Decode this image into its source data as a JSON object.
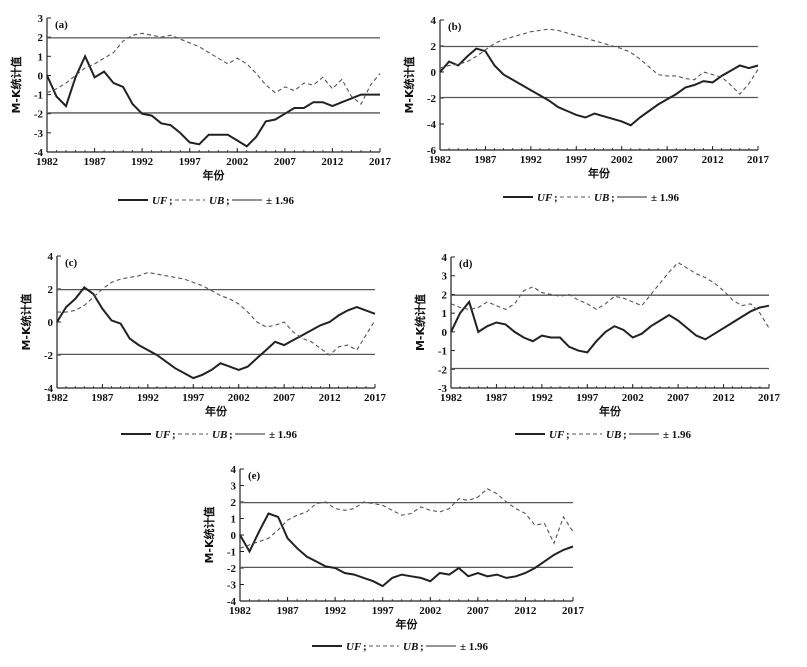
{
  "legend": {
    "uf": "UF",
    "ub": "UB",
    "threshold": "± 1.96",
    "sep": ";"
  },
  "chart_data": [
    {
      "type": "line",
      "panel_label": "(a)",
      "ylabel": "M-K统计值",
      "xlabel": "年份",
      "xlim": [
        1982,
        2017
      ],
      "ylim": [
        -4,
        3
      ],
      "yticks": [
        -4,
        -3,
        -2,
        -1,
        0,
        1,
        2,
        3
      ],
      "xticks": [
        1982,
        1987,
        1992,
        1997,
        2002,
        2007,
        2012,
        2017
      ],
      "threshold": 1.96,
      "x": [
        1982,
        1983,
        1984,
        1985,
        1986,
        1987,
        1988,
        1989,
        1990,
        1991,
        1992,
        1993,
        1994,
        1995,
        1996,
        1997,
        1998,
        1999,
        2000,
        2001,
        2002,
        2003,
        2004,
        2005,
        2006,
        2007,
        2008,
        2009,
        2010,
        2011,
        2012,
        2013,
        2014,
        2015,
        2016,
        2017
      ],
      "series": [
        {
          "name": "UF",
          "style": "solid",
          "values": [
            0,
            -1.1,
            -1.6,
            -0.1,
            1.0,
            -0.1,
            0.2,
            -0.4,
            -0.6,
            -1.5,
            -2.0,
            -2.1,
            -2.5,
            -2.6,
            -3.0,
            -3.5,
            -3.6,
            -3.1,
            -3.1,
            -3.1,
            -3.4,
            -3.7,
            -3.2,
            -2.4,
            -2.3,
            -2.0,
            -1.7,
            -1.7,
            -1.4,
            -1.4,
            -1.6,
            -1.4,
            -1.2,
            -1.0,
            -1.0,
            -1.0
          ]
        },
        {
          "name": "UB",
          "style": "dashed",
          "values": [
            -0.9,
            -0.7,
            -0.4,
            0.0,
            0.4,
            0.6,
            0.9,
            1.2,
            1.8,
            2.1,
            2.2,
            2.1,
            2.0,
            2.1,
            1.9,
            1.7,
            1.5,
            1.2,
            0.9,
            0.6,
            0.9,
            0.6,
            0.1,
            -0.5,
            -0.9,
            -0.6,
            -0.8,
            -0.4,
            -0.5,
            -0.1,
            -0.7,
            -0.2,
            -1.1,
            -1.5,
            -0.5,
            0.1
          ]
        }
      ]
    },
    {
      "type": "line",
      "panel_label": "(b)",
      "ylabel": "M-K统计值",
      "xlabel": "年份",
      "xlim": [
        1982,
        2017
      ],
      "ylim": [
        -6,
        4
      ],
      "yticks": [
        -6,
        -4,
        -2,
        0,
        2,
        4
      ],
      "xticks": [
        1982,
        1987,
        1992,
        1997,
        2002,
        2007,
        2012,
        2017
      ],
      "threshold": 1.96,
      "x": [
        1982,
        1983,
        1984,
        1985,
        1986,
        1987,
        1988,
        1989,
        1990,
        1991,
        1992,
        1993,
        1994,
        1995,
        1996,
        1997,
        1998,
        1999,
        2000,
        2001,
        2002,
        2003,
        2004,
        2005,
        2006,
        2007,
        2008,
        2009,
        2010,
        2011,
        2012,
        2013,
        2014,
        2015,
        2016,
        2017
      ],
      "series": [
        {
          "name": "UF",
          "style": "solid",
          "values": [
            0,
            0.8,
            0.5,
            1.2,
            1.8,
            1.6,
            0.5,
            -0.2,
            -0.6,
            -1.0,
            -1.4,
            -1.8,
            -2.2,
            -2.7,
            -3.0,
            -3.3,
            -3.5,
            -3.2,
            -3.4,
            -3.6,
            -3.8,
            -4.1,
            -3.5,
            -3.0,
            -2.5,
            -2.1,
            -1.7,
            -1.2,
            -1.0,
            -0.7,
            -0.8,
            -0.3,
            0.1,
            0.5,
            0.3,
            0.5
          ]
        },
        {
          "name": "UB",
          "style": "dashed",
          "values": [
            0.3,
            0.5,
            0.6,
            0.8,
            1.2,
            1.7,
            2.2,
            2.5,
            2.7,
            2.9,
            3.1,
            3.2,
            3.3,
            3.2,
            3.0,
            2.8,
            2.6,
            2.4,
            2.2,
            2.0,
            1.8,
            1.5,
            1.0,
            0.4,
            -0.2,
            -0.3,
            -0.3,
            -0.5,
            -0.6,
            0.0,
            -0.2,
            -0.4,
            -1.0,
            -1.7,
            -0.9,
            0.2
          ]
        }
      ]
    },
    {
      "type": "line",
      "panel_label": "(c)",
      "ylabel": "M-K统计值",
      "xlabel": "年份",
      "xlim": [
        1982,
        2017
      ],
      "ylim": [
        -4,
        4
      ],
      "yticks": [
        -4,
        -2,
        0,
        2,
        4
      ],
      "xticks": [
        1982,
        1987,
        1992,
        1997,
        2002,
        2007,
        2012,
        2017
      ],
      "threshold": 1.96,
      "x": [
        1982,
        1983,
        1984,
        1985,
        1986,
        1987,
        1988,
        1989,
        1990,
        1991,
        1992,
        1993,
        1994,
        1995,
        1996,
        1997,
        1998,
        1999,
        2000,
        2001,
        2002,
        2003,
        2004,
        2005,
        2006,
        2007,
        2008,
        2009,
        2010,
        2011,
        2012,
        2013,
        2014,
        2015,
        2016,
        2017
      ],
      "series": [
        {
          "name": "UF",
          "style": "solid",
          "values": [
            0,
            0.9,
            1.4,
            2.1,
            1.7,
            0.8,
            0.1,
            -0.1,
            -1.0,
            -1.4,
            -1.7,
            -2.0,
            -2.4,
            -2.8,
            -3.1,
            -3.4,
            -3.2,
            -2.9,
            -2.5,
            -2.7,
            -2.9,
            -2.7,
            -2.2,
            -1.7,
            -1.2,
            -1.4,
            -1.1,
            -0.8,
            -0.5,
            -0.2,
            0.0,
            0.4,
            0.7,
            0.9,
            0.7,
            0.5
          ]
        },
        {
          "name": "UB",
          "style": "dashed",
          "values": [
            0.6,
            0.6,
            0.7,
            1.0,
            1.5,
            2.0,
            2.4,
            2.6,
            2.7,
            2.8,
            3.0,
            2.9,
            2.8,
            2.7,
            2.6,
            2.4,
            2.2,
            1.9,
            1.6,
            1.4,
            1.1,
            0.6,
            0.0,
            -0.3,
            -0.2,
            0.0,
            -0.6,
            -1.0,
            -1.2,
            -1.6,
            -2.0,
            -1.5,
            -1.4,
            -1.7,
            -0.8,
            0.1
          ]
        }
      ]
    },
    {
      "type": "line",
      "panel_label": "(d)",
      "ylabel": "M-K统计值",
      "xlabel": "年份",
      "xlim": [
        1982,
        2017
      ],
      "ylim": [
        -3,
        4
      ],
      "yticks": [
        -3,
        -2,
        -1,
        0,
        1,
        2,
        3,
        4
      ],
      "xticks": [
        1982,
        1987,
        1992,
        1997,
        2002,
        2007,
        2012,
        2017
      ],
      "threshold": 1.96,
      "x": [
        1982,
        1983,
        1984,
        1985,
        1986,
        1987,
        1988,
        1989,
        1990,
        1991,
        1992,
        1993,
        1994,
        1995,
        1996,
        1997,
        1998,
        1999,
        2000,
        2001,
        2002,
        2003,
        2004,
        2005,
        2006,
        2007,
        2008,
        2009,
        2010,
        2011,
        2012,
        2013,
        2014,
        2015,
        2016,
        2017
      ],
      "series": [
        {
          "name": "UF",
          "style": "solid",
          "values": [
            0,
            1.0,
            1.6,
            0.0,
            0.3,
            0.5,
            0.4,
            0.0,
            -0.3,
            -0.5,
            -0.2,
            -0.3,
            -0.3,
            -0.8,
            -1.0,
            -1.1,
            -0.5,
            0.0,
            0.3,
            0.1,
            -0.3,
            -0.1,
            0.3,
            0.6,
            0.9,
            0.6,
            0.2,
            -0.2,
            -0.4,
            -0.1,
            0.2,
            0.5,
            0.8,
            1.1,
            1.3,
            1.4
          ]
        },
        {
          "name": "UB",
          "style": "dashed",
          "values": [
            1.5,
            1.3,
            1.2,
            1.3,
            1.6,
            1.4,
            1.2,
            1.5,
            2.2,
            2.4,
            2.1,
            2.0,
            1.9,
            2.0,
            1.7,
            1.5,
            1.2,
            1.5,
            1.9,
            1.8,
            1.6,
            1.4,
            2.0,
            2.6,
            3.2,
            3.7,
            3.4,
            3.1,
            2.9,
            2.6,
            2.2,
            1.7,
            1.4,
            1.5,
            1.0,
            0.2
          ]
        }
      ]
    },
    {
      "type": "line",
      "panel_label": "(e)",
      "ylabel": "M-K统计值",
      "xlabel": "年份",
      "xlim": [
        1982,
        2017
      ],
      "ylim": [
        -4,
        4
      ],
      "yticks": [
        -4,
        -3,
        -2,
        -1,
        0,
        1,
        2,
        3,
        4
      ],
      "xticks": [
        1982,
        1987,
        1992,
        1997,
        2002,
        2007,
        2012,
        2017
      ],
      "threshold": 1.96,
      "x": [
        1982,
        1983,
        1984,
        1985,
        1986,
        1987,
        1988,
        1989,
        1990,
        1991,
        1992,
        1993,
        1994,
        1995,
        1996,
        1997,
        1998,
        1999,
        2000,
        2001,
        2002,
        2003,
        2004,
        2005,
        2006,
        2007,
        2008,
        2009,
        2010,
        2011,
        2012,
        2013,
        2014,
        2015,
        2016,
        2017
      ],
      "series": [
        {
          "name": "UF",
          "style": "solid",
          "values": [
            0,
            -1.0,
            0.2,
            1.3,
            1.1,
            -0.2,
            -0.8,
            -1.3,
            -1.6,
            -1.9,
            -2.0,
            -2.3,
            -2.4,
            -2.6,
            -2.8,
            -3.1,
            -2.6,
            -2.4,
            -2.5,
            -2.6,
            -2.8,
            -2.3,
            -2.4,
            -2.0,
            -2.5,
            -2.3,
            -2.5,
            -2.4,
            -2.6,
            -2.5,
            -2.3,
            -2.0,
            -1.6,
            -1.2,
            -0.9,
            -0.7
          ]
        },
        {
          "name": "UB",
          "style": "dashed",
          "values": [
            -0.8,
            -0.6,
            -0.4,
            -0.2,
            0.3,
            0.9,
            1.2,
            1.4,
            1.9,
            2.0,
            1.6,
            1.5,
            1.6,
            2.0,
            1.9,
            1.8,
            1.5,
            1.2,
            1.3,
            1.7,
            1.5,
            1.4,
            1.6,
            2.2,
            2.1,
            2.3,
            2.8,
            2.5,
            2.0,
            1.6,
            1.3,
            0.6,
            0.7,
            -0.5,
            1.1,
            0.2
          ]
        }
      ]
    }
  ]
}
